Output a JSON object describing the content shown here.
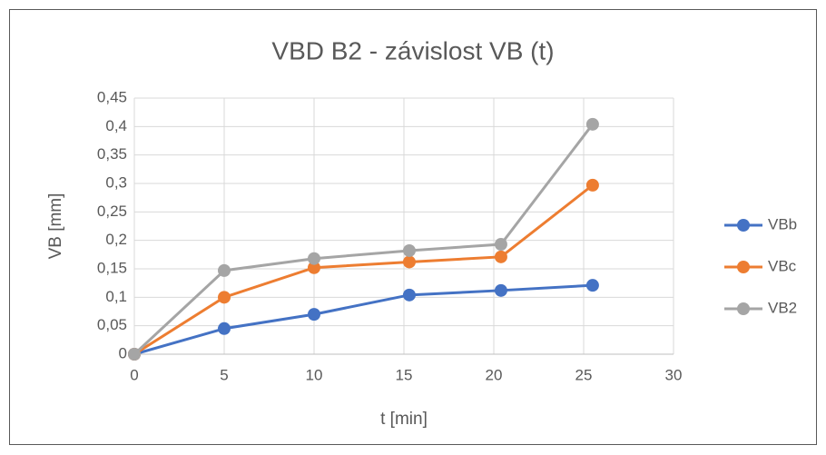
{
  "chart_data": {
    "type": "line",
    "title": "VBD B2 - závislost VB (t)",
    "x_label": "t [min]",
    "y_label": "VB [mm]",
    "x": [
      0,
      5,
      10,
      15.3,
      20.4,
      25.5
    ],
    "series": [
      {
        "name": "VBb",
        "color": "#4472c4",
        "values": [
          0,
          0.045,
          0.07,
          0.104,
          0.112,
          0.121
        ]
      },
      {
        "name": "VBc",
        "color": "#ed7d31",
        "values": [
          0,
          0.1,
          0.152,
          0.162,
          0.171,
          0.297
        ]
      },
      {
        "name": "VB2",
        "color": "#a5a5a5",
        "values": [
          0,
          0.147,
          0.168,
          0.182,
          0.193,
          0.404
        ]
      }
    ],
    "xlim": [
      0,
      30
    ],
    "xticks": [
      0,
      5,
      10,
      15,
      20,
      25,
      30
    ],
    "ylim": [
      0,
      0.45
    ],
    "yticks": [
      0,
      {
        "value": 0.05,
        "label": "0,05"
      },
      {
        "value": 0.1,
        "label": "0,1"
      },
      {
        "value": 0.15,
        "label": "0,15"
      },
      {
        "value": 0.2,
        "label": "0,2"
      },
      {
        "value": 0.25,
        "label": "0,25"
      },
      {
        "value": 0.3,
        "label": "0,3"
      },
      {
        "value": 0.35,
        "label": "0,35"
      },
      {
        "value": 0.4,
        "label": "0,4"
      },
      {
        "value": 0.45,
        "label": "0,45"
      }
    ],
    "grid": true,
    "legend": "right"
  }
}
